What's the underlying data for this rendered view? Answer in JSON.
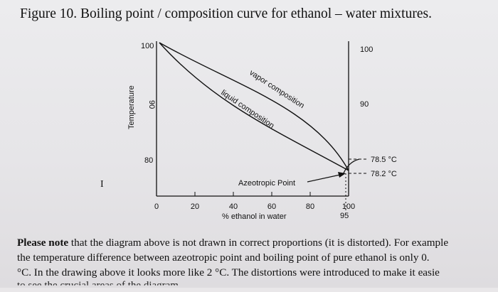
{
  "figure_title": "Figure 10. Boiling point / composition curve for ethanol – water mixtures.",
  "note": {
    "bold_lead": "Please note",
    "line1_rest": " that the diagram above is not drawn in correct proportions (it is distorted). For example",
    "line2": "the temperature difference between azeotropic point and boiling point of pure ethanol is only 0.",
    "line3": "°C. In the drawing above it looks more like 2 °C. The distortions were introduced to make it easie",
    "line4": "to see the crucial areas of the diagram"
  },
  "side_glyph": "I",
  "chart_data": {
    "type": "line",
    "xlabel": "% ethanol in water",
    "ylabel": "Temperature",
    "x_ticks": [
      "0",
      "20",
      "40",
      "60",
      "80",
      "100"
    ],
    "extra_x_tick": "95",
    "left_y_ticks": [
      "100",
      "90",
      "80"
    ],
    "right_y_ticks": [
      "100",
      "90"
    ],
    "right_annotations": [
      "78.5 °C",
      "78.2 °C"
    ],
    "annotations": {
      "vapor": "vapor composition",
      "liquid": "liquid composition",
      "azeotrope": "Azeotropic Point"
    },
    "series": [
      {
        "name": "vapor composition",
        "x": [
          0,
          20,
          40,
          60,
          80,
          90,
          95
        ],
        "y": [
          100,
          95.5,
          92.3,
          89.5,
          85.5,
          81.8,
          78.2
        ]
      },
      {
        "name": "liquid composition",
        "x": [
          0,
          20,
          40,
          60,
          80,
          90,
          95
        ],
        "y": [
          100,
          92.6,
          88.7,
          85.5,
          82.3,
          80.0,
          78.2
        ]
      },
      {
        "name": "",
        "x": [
          95,
          97.5,
          100
        ],
        "y": [
          78.2,
          78.35,
          78.5
        ]
      }
    ]
  }
}
